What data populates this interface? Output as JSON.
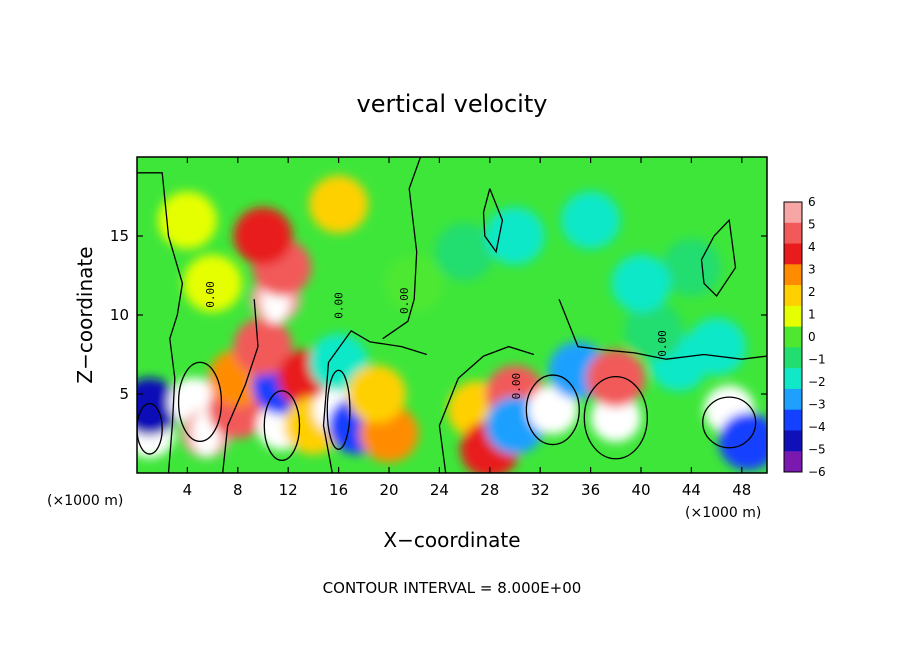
{
  "chart_data": {
    "type": "heatmap",
    "title": "vertical velocity",
    "xlabel": "X−coordinate",
    "ylabel": "Z−coordinate",
    "x_unit_left": "(×1000 m)",
    "x_unit_right": "(×1000 m)",
    "footer": "CONTOUR INTERVAL = 8.000E+00",
    "contour_label": "0.00",
    "xlim": [
      0,
      50
    ],
    "ylim": [
      0,
      20
    ],
    "x_ticks": [
      "4",
      "8",
      "12",
      "16",
      "20",
      "24",
      "28",
      "32",
      "36",
      "40",
      "44",
      "48"
    ],
    "y_ticks": [
      "5",
      "10",
      "15"
    ],
    "colorbar": {
      "levels": [
        "6",
        "5",
        "4",
        "3",
        "2",
        "1",
        "0",
        "−1",
        "−2",
        "−3",
        "−4",
        "−5",
        "−6"
      ],
      "colors": [
        "#f7a6a6",
        "#f25a5a",
        "#e81c1c",
        "#ff8c00",
        "#ffd000",
        "#e6ff00",
        "#4ee830",
        "#22dd70",
        "#10e8c8",
        "#1ea0ff",
        "#1440ff",
        "#1010b8",
        "#7a18b0"
      ]
    },
    "cells": [
      {
        "x": 1,
        "z": 2.5,
        "w": -7
      },
      {
        "x": 1,
        "z": 4.2,
        "w": -5
      },
      {
        "x": 4.5,
        "z": 4.5,
        "w": 7
      },
      {
        "x": 5.5,
        "z": 2.5,
        "w": 6
      },
      {
        "x": 8,
        "z": 4,
        "w": 5
      },
      {
        "x": 8,
        "z": 6,
        "w": 3
      },
      {
        "x": 11.5,
        "z": 3,
        "w": -7
      },
      {
        "x": 11.5,
        "z": 5.5,
        "w": -4
      },
      {
        "x": 10,
        "z": 8,
        "w": 5
      },
      {
        "x": 11,
        "z": 11,
        "w": 6
      },
      {
        "x": 11.5,
        "z": 13,
        "w": 5
      },
      {
        "x": 10,
        "z": 15,
        "w": 4
      },
      {
        "x": 13.5,
        "z": 6,
        "w": 4
      },
      {
        "x": 14,
        "z": 3,
        "w": 2
      },
      {
        "x": 16,
        "z": 4,
        "w": 7
      },
      {
        "x": 16,
        "z": 7,
        "w": -2
      },
      {
        "x": 17.5,
        "z": 3,
        "w": -4
      },
      {
        "x": 20,
        "z": 2.5,
        "w": 3
      },
      {
        "x": 19,
        "z": 5,
        "w": 2
      },
      {
        "x": 22,
        "z": 12,
        "w": 0
      },
      {
        "x": 26,
        "z": 14,
        "w": -1
      },
      {
        "x": 30,
        "z": 15,
        "w": -2
      },
      {
        "x": 27,
        "z": 4,
        "w": 2
      },
      {
        "x": 28,
        "z": 1.5,
        "w": 4
      },
      {
        "x": 30,
        "z": 5,
        "w": 5
      },
      {
        "x": 30,
        "z": 3,
        "w": -3
      },
      {
        "x": 33,
        "z": 4,
        "w": -7
      },
      {
        "x": 35,
        "z": 6.5,
        "w": -3
      },
      {
        "x": 38,
        "z": 3.5,
        "w": 8
      },
      {
        "x": 38,
        "z": 6,
        "w": 5
      },
      {
        "x": 43,
        "z": 7,
        "w": -2
      },
      {
        "x": 41,
        "z": 9,
        "w": -1
      },
      {
        "x": 47,
        "z": 4,
        "w": -7
      },
      {
        "x": 48.5,
        "z": 2,
        "w": -4
      },
      {
        "x": 46,
        "z": 8,
        "w": -2
      },
      {
        "x": 44,
        "z": 13,
        "w": -1
      },
      {
        "x": 6,
        "z": 12,
        "w": 1
      },
      {
        "x": 4,
        "z": 16,
        "w": 1
      },
      {
        "x": 16,
        "z": 17,
        "w": 2
      },
      {
        "x": 36,
        "z": 16,
        "w": -2
      },
      {
        "x": 40,
        "z": 12,
        "w": -2
      }
    ]
  }
}
